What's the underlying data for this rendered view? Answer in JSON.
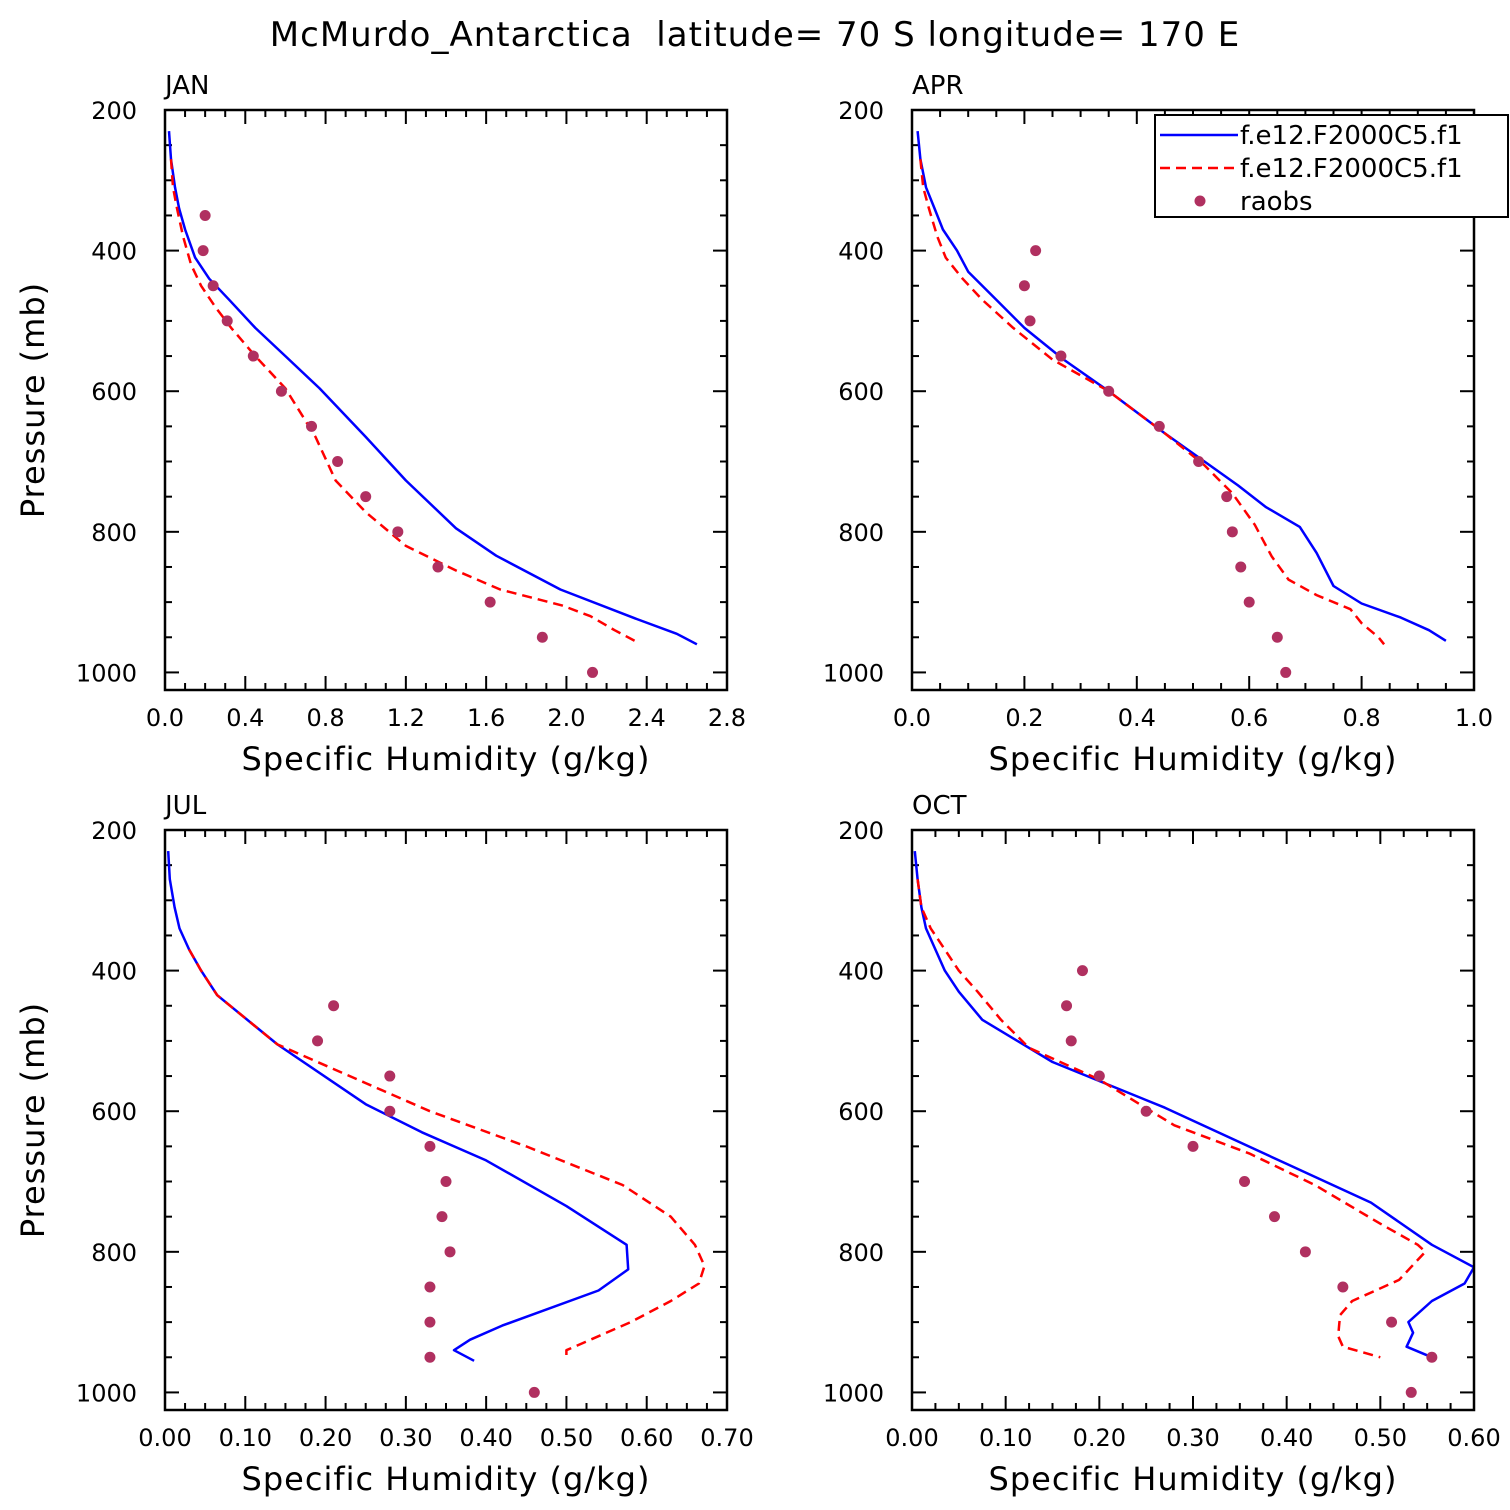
{
  "figure_title": "McMurdo_Antarctica  latitude= 70 S longitude= 170 E",
  "colors": {
    "model1": "#0000ff",
    "model2": "#ff0000",
    "raobs": "#b03060",
    "axis": "#000000"
  },
  "legend": {
    "entries": [
      {
        "label": "f.e12.F2000C5.f1",
        "style": "solid"
      },
      {
        "label": "f.e12.F2000C5.f1",
        "style": "dashed"
      },
      {
        "label": "raobs",
        "style": "marker"
      }
    ]
  },
  "chart_data": [
    {
      "type": "line",
      "title": "JAN",
      "xlabel": "Specific Humidity (g/kg)",
      "ylabel": "Pressure (mb)",
      "xlim": [
        0,
        2.8
      ],
      "ylim": [
        200,
        1025
      ],
      "y_inverted": true,
      "xticks": [
        0.0,
        0.4,
        0.8,
        1.2,
        1.6,
        2.0,
        2.4,
        2.8
      ],
      "xtick_labels": [
        "0.0",
        "0.4",
        "0.8",
        "1.2",
        "1.6",
        "2.0",
        "2.4",
        "2.8"
      ],
      "yticks": [
        200,
        400,
        600,
        800,
        1000
      ],
      "ytick_labels": [
        "200",
        "400",
        "600",
        "800",
        "1000"
      ],
      "series": [
        {
          "name": "f.e12.F2000C5.f1 (solid)",
          "style": "solid",
          "x": [
            0.02,
            0.03,
            0.05,
            0.07,
            0.1,
            0.15,
            0.22,
            0.32,
            0.45,
            0.6,
            0.77,
            1.0,
            1.2,
            1.45,
            1.65,
            1.97,
            2.35,
            2.55,
            2.65
          ],
          "y": [
            230,
            270,
            310,
            340,
            370,
            410,
            440,
            470,
            510,
            550,
            596,
            665,
            727,
            795,
            834,
            882,
            924,
            945,
            960
          ]
        },
        {
          "name": "f.e12.F2000C5.f1 (dashed)",
          "style": "dashed",
          "x": [
            0.03,
            0.04,
            0.06,
            0.09,
            0.13,
            0.18,
            0.25,
            0.33,
            0.45,
            0.6,
            0.75,
            0.85,
            1.0,
            1.2,
            1.45,
            1.67,
            1.98,
            2.12,
            2.24,
            2.34
          ],
          "y": [
            270,
            310,
            340,
            380,
            420,
            450,
            480,
            510,
            550,
            596,
            665,
            727,
            772,
            820,
            855,
            882,
            905,
            920,
            940,
            955
          ]
        },
        {
          "name": "raobs",
          "style": "marker",
          "x": [
            0.2,
            0.19,
            0.24,
            0.31,
            0.44,
            0.58,
            0.73,
            0.86,
            1.0,
            1.16,
            1.36,
            1.62,
            1.88,
            2.13
          ],
          "y": [
            350,
            400,
            450,
            500,
            550,
            600,
            650,
            700,
            750,
            800,
            850,
            900,
            950,
            1000
          ]
        }
      ]
    },
    {
      "type": "line",
      "title": "APR",
      "xlabel": "Specific Humidity (g/kg)",
      "ylabel": "",
      "xlim": [
        0,
        1.0
      ],
      "ylim": [
        200,
        1025
      ],
      "y_inverted": true,
      "xticks": [
        0.0,
        0.2,
        0.4,
        0.6,
        0.8,
        1.0
      ],
      "xtick_labels": [
        "0.0",
        "0.2",
        "0.4",
        "0.6",
        "0.8",
        "1.0"
      ],
      "yticks": [
        200,
        400,
        600,
        800,
        1000
      ],
      "ytick_labels": [
        "200",
        "400",
        "600",
        "800",
        "1000"
      ],
      "series": [
        {
          "name": "f.e12.F2000C5.f1 (solid)",
          "style": "solid",
          "x": [
            0.01,
            0.015,
            0.025,
            0.04,
            0.055,
            0.08,
            0.1,
            0.15,
            0.2,
            0.27,
            0.35,
            0.45,
            0.58,
            0.63,
            0.69,
            0.72,
            0.75,
            0.8,
            0.87,
            0.92,
            0.95
          ],
          "y": [
            230,
            270,
            310,
            340,
            370,
            400,
            430,
            470,
            510,
            555,
            600,
            660,
            734,
            765,
            793,
            830,
            877,
            902,
            922,
            940,
            955
          ]
        },
        {
          "name": "f.e12.F2000C5.f1 (dashed)",
          "style": "dashed",
          "x": [
            0.015,
            0.02,
            0.03,
            0.045,
            0.06,
            0.09,
            0.125,
            0.18,
            0.25,
            0.35,
            0.45,
            0.52,
            0.57,
            0.61,
            0.64,
            0.67,
            0.72,
            0.78,
            0.8,
            0.83,
            0.84
          ],
          "y": [
            270,
            310,
            340,
            380,
            410,
            440,
            470,
            510,
            555,
            600,
            660,
            705,
            745,
            790,
            835,
            868,
            890,
            910,
            930,
            950,
            960
          ]
        },
        {
          "name": "raobs",
          "style": "marker",
          "x": [
            0.22,
            0.2,
            0.21,
            0.265,
            0.35,
            0.44,
            0.51,
            0.56,
            0.57,
            0.585,
            0.6,
            0.65,
            0.665
          ],
          "y": [
            400,
            450,
            500,
            550,
            600,
            650,
            700,
            750,
            800,
            850,
            900,
            950,
            1000
          ]
        }
      ]
    },
    {
      "type": "line",
      "title": "JUL",
      "xlabel": "Specific Humidity (g/kg)",
      "ylabel": "Pressure (mb)",
      "xlim": [
        0,
        0.7
      ],
      "ylim": [
        200,
        1025
      ],
      "y_inverted": true,
      "xticks": [
        0.0,
        0.1,
        0.2,
        0.3,
        0.4,
        0.5,
        0.6,
        0.7
      ],
      "xtick_labels": [
        "0.00",
        "0.10",
        "0.20",
        "0.30",
        "0.40",
        "0.50",
        "0.60",
        "0.70"
      ],
      "yticks": [
        200,
        400,
        600,
        800,
        1000
      ],
      "ytick_labels": [
        "200",
        "400",
        "600",
        "800",
        "1000"
      ],
      "series": [
        {
          "name": "f.e12.F2000C5.f1 (solid)",
          "style": "solid",
          "x": [
            0.004,
            0.006,
            0.012,
            0.018,
            0.03,
            0.045,
            0.065,
            0.14,
            0.25,
            0.32,
            0.4,
            0.5,
            0.575,
            0.577,
            0.54,
            0.42,
            0.38,
            0.36,
            0.385
          ],
          "y": [
            230,
            270,
            310,
            340,
            370,
            400,
            435,
            505,
            590,
            630,
            670,
            735,
            790,
            825,
            855,
            905,
            925,
            940,
            955
          ]
        },
        {
          "name": "f.e12.F2000C5.f1 (dashed)",
          "style": "dashed",
          "x": [
            0.03,
            0.045,
            0.065,
            0.14,
            0.25,
            0.33,
            0.45,
            0.57,
            0.63,
            0.66,
            0.672,
            0.665,
            0.63,
            0.58,
            0.53,
            0.5,
            0.5
          ],
          "y": [
            370,
            400,
            435,
            505,
            560,
            600,
            650,
            705,
            750,
            790,
            820,
            845,
            870,
            900,
            925,
            940,
            950
          ]
        },
        {
          "name": "raobs",
          "style": "marker",
          "x": [
            0.21,
            0.19,
            0.28,
            0.28,
            0.33,
            0.35,
            0.345,
            0.355,
            0.33,
            0.33,
            0.33,
            0.46
          ],
          "y": [
            450,
            500,
            550,
            600,
            650,
            700,
            750,
            800,
            850,
            900,
            950,
            1000
          ]
        }
      ]
    },
    {
      "type": "line",
      "title": "OCT",
      "xlabel": "Specific Humidity (g/kg)",
      "ylabel": "",
      "xlim": [
        0,
        0.6
      ],
      "ylim": [
        200,
        1025
      ],
      "y_inverted": true,
      "xticks": [
        0.0,
        0.1,
        0.2,
        0.3,
        0.4,
        0.5,
        0.6
      ],
      "xtick_labels": [
        "0.00",
        "0.10",
        "0.20",
        "0.30",
        "0.40",
        "0.50",
        "0.60"
      ],
      "yticks": [
        200,
        400,
        600,
        800,
        1000
      ],
      "ytick_labels": [
        "200",
        "400",
        "600",
        "800",
        "1000"
      ],
      "series": [
        {
          "name": "f.e12.F2000C5.f1 (solid)",
          "style": "solid",
          "x": [
            0.003,
            0.006,
            0.01,
            0.015,
            0.025,
            0.035,
            0.05,
            0.075,
            0.15,
            0.27,
            0.4,
            0.49,
            0.555,
            0.6,
            0.59,
            0.555,
            0.53,
            0.535,
            0.528,
            0.555
          ],
          "y": [
            230,
            270,
            310,
            340,
            370,
            400,
            430,
            470,
            530,
            595,
            675,
            730,
            790,
            822,
            845,
            870,
            900,
            915,
            935,
            950
          ]
        },
        {
          "name": "f.e12.F2000C5.f1 (dashed)",
          "style": "dashed",
          "x": [
            0.006,
            0.01,
            0.02,
            0.035,
            0.05,
            0.07,
            0.095,
            0.125,
            0.2,
            0.28,
            0.36,
            0.43,
            0.5,
            0.54,
            0.548,
            0.52,
            0.47,
            0.457,
            0.456,
            0.455,
            0.46,
            0.5
          ],
          "y": [
            270,
            310,
            340,
            370,
            400,
            430,
            470,
            510,
            555,
            620,
            660,
            705,
            760,
            790,
            800,
            840,
            870,
            890,
            905,
            920,
            935,
            950
          ]
        },
        {
          "name": "raobs",
          "style": "marker",
          "x": [
            0.182,
            0.165,
            0.17,
            0.2,
            0.25,
            0.3,
            0.355,
            0.387,
            0.42,
            0.46,
            0.512,
            0.555,
            0.533
          ],
          "y": [
            400,
            450,
            500,
            550,
            600,
            650,
            700,
            750,
            800,
            850,
            900,
            950,
            1000
          ]
        }
      ]
    }
  ]
}
